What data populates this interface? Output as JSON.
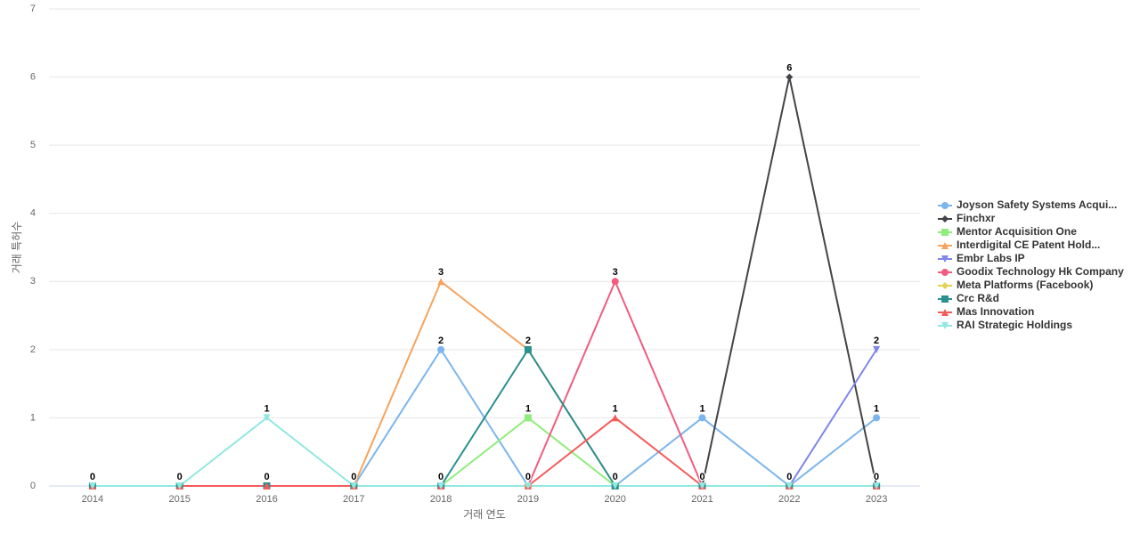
{
  "chart_data": {
    "type": "line",
    "x_label": "거래 연도",
    "y_label": "거래 특허수",
    "categories": [
      "2014",
      "2015",
      "2016",
      "2017",
      "2018",
      "2019",
      "2020",
      "2021",
      "2022",
      "2023"
    ],
    "ylim": [
      0,
      7
    ],
    "yticks": [
      0,
      1,
      2,
      3,
      4,
      5,
      6,
      7
    ],
    "grid": true,
    "legend": "right",
    "data_labels": true,
    "series": [
      {
        "name": "Joyson Safety Systems Acqui...",
        "color": "#7cb5ec",
        "marker": "circle",
        "values": [
          0,
          0,
          0,
          0,
          2,
          0,
          0,
          1,
          0,
          1
        ]
      },
      {
        "name": "Finchxr",
        "color": "#434348",
        "marker": "diamond",
        "values": [
          0,
          0,
          0,
          0,
          0,
          0,
          0,
          0,
          6,
          0
        ]
      },
      {
        "name": "Mentor Acquisition One",
        "color": "#90ed7d",
        "marker": "square",
        "values": [
          0,
          0,
          0,
          0,
          0,
          1,
          0,
          0,
          0,
          0
        ]
      },
      {
        "name": "Interdigital CE Patent Hold...",
        "color": "#f7a35c",
        "marker": "triangle",
        "values": [
          0,
          0,
          0,
          0,
          3,
          2,
          0,
          0,
          0,
          0
        ]
      },
      {
        "name": "Embr Labs IP",
        "color": "#8085e9",
        "marker": "triangle-down",
        "values": [
          0,
          0,
          0,
          0,
          0,
          0,
          0,
          0,
          0,
          2
        ]
      },
      {
        "name": "Goodix Technology Hk Company",
        "color": "#f15c80",
        "marker": "circle",
        "values": [
          0,
          0,
          0,
          0,
          0,
          0,
          3,
          0,
          0,
          0
        ]
      },
      {
        "name": "Meta Platforms (Facebook)",
        "color": "#e4d354",
        "marker": "diamond",
        "values": [
          0,
          0,
          0,
          0,
          0,
          0,
          0,
          0,
          0,
          0
        ]
      },
      {
        "name": "Crc R&d",
        "color": "#2b908f",
        "marker": "square",
        "values": [
          0,
          0,
          0,
          0,
          0,
          2,
          0,
          0,
          0,
          0
        ]
      },
      {
        "name": "Mas Innovation",
        "color": "#f45b5b",
        "marker": "triangle",
        "values": [
          0,
          0,
          0,
          0,
          0,
          0,
          1,
          0,
          0,
          0
        ]
      },
      {
        "name": "RAI Strategic Holdings",
        "color": "#91e8e1",
        "marker": "triangle-down",
        "values": [
          0,
          0,
          1,
          0,
          0,
          0,
          0,
          0,
          0,
          0
        ]
      }
    ]
  }
}
